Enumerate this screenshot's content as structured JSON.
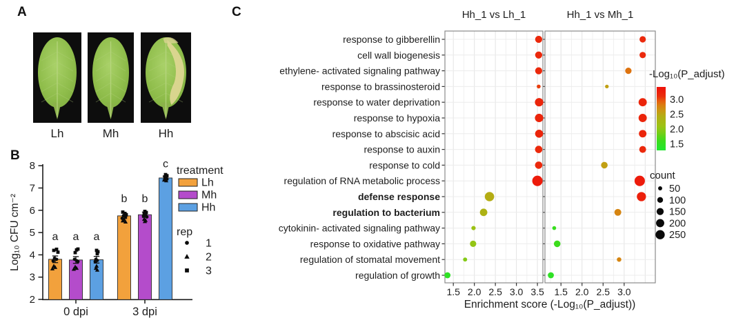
{
  "panels": {
    "a": {
      "label": "A"
    },
    "b": {
      "label": "B"
    },
    "c": {
      "label": "C"
    }
  },
  "panel_a": {
    "leaves": [
      {
        "label": "Lh",
        "damaged": false
      },
      {
        "label": "Mh",
        "damaged": false
      },
      {
        "label": "Hh",
        "damaged": true
      }
    ]
  },
  "chart_data": [
    {
      "type": "bar",
      "panel": "B",
      "ylabel": "Log₁₀ CFU cm⁻²",
      "ylim": [
        2,
        8
      ],
      "yticks": [
        2,
        3,
        4,
        5,
        6,
        7,
        8
      ],
      "groups": [
        "0 dpi",
        "3 dpi"
      ],
      "legend_title": "treatment",
      "series": [
        {
          "name": "Lh",
          "color": "#F2A13C",
          "values": [
            3.8,
            5.75
          ],
          "errors": [
            0.15,
            0.12
          ],
          "letters": [
            "a",
            "b"
          ],
          "letter_v": [
            4.66,
            6.36
          ],
          "jitter": [
            [
              [
                -2,
                4.2,
                "s"
              ],
              [
                2,
                4.25,
                "s"
              ],
              [
                4,
                4.12,
                "s"
              ],
              [
                -1,
                3.85,
                "c"
              ],
              [
                2,
                3.8,
                "c"
              ],
              [
                -3,
                3.73,
                "c"
              ],
              [
                -2,
                3.5,
                "t"
              ],
              [
                0,
                3.44,
                "t"
              ],
              [
                -4,
                3.38,
                "t"
              ]
            ],
            [
              [
                -2,
                5.92,
                "s"
              ],
              [
                1,
                5.86,
                "s"
              ],
              [
                3,
                5.8,
                "s"
              ],
              [
                -1,
                5.76,
                "c"
              ],
              [
                2,
                5.7,
                "c"
              ],
              [
                -3,
                5.64,
                "c"
              ],
              [
                0,
                5.58,
                "t"
              ],
              [
                -2,
                5.53,
                "t"
              ],
              [
                2,
                5.48,
                "t"
              ]
            ]
          ]
        },
        {
          "name": "Mh",
          "color": "#B44CCB",
          "values": [
            3.77,
            5.8
          ],
          "errors": [
            0.15,
            0.12
          ],
          "letters": [
            "a",
            "b"
          ],
          "letter_v": [
            4.66,
            6.36
          ],
          "jitter": [
            [
              [
                1,
                4.22,
                "s"
              ],
              [
                3,
                4.26,
                "s"
              ],
              [
                -1,
                4.1,
                "s"
              ],
              [
                -2,
                3.8,
                "c"
              ],
              [
                1,
                3.74,
                "c"
              ],
              [
                3,
                3.7,
                "c"
              ],
              [
                -1,
                3.46,
                "t"
              ],
              [
                1,
                3.4,
                "t"
              ],
              [
                -3,
                3.36,
                "t"
              ]
            ],
            [
              [
                0,
                5.95,
                "s"
              ],
              [
                2,
                5.9,
                "s"
              ],
              [
                -1,
                5.84,
                "s"
              ],
              [
                1,
                5.79,
                "c"
              ],
              [
                -2,
                5.74,
                "c"
              ],
              [
                3,
                5.7,
                "c"
              ],
              [
                -1,
                5.6,
                "t"
              ],
              [
                1,
                5.55,
                "t"
              ],
              [
                0,
                5.5,
                "t"
              ]
            ]
          ]
        },
        {
          "name": "Hh",
          "color": "#5CA0E2",
          "values": [
            3.78,
            7.45
          ],
          "errors": [
            0.15,
            0.08
          ],
          "letters": [
            "a",
            "c"
          ],
          "letter_v": [
            4.66,
            7.93
          ],
          "jitter": [
            [
              [
                0,
                4.2,
                "s"
              ],
              [
                2,
                4.14,
                "s"
              ],
              [
                1,
                4.05,
                "s"
              ],
              [
                -1,
                3.8,
                "c"
              ],
              [
                1,
                3.75,
                "c"
              ],
              [
                -2,
                3.7,
                "c"
              ],
              [
                0,
                3.5,
                "t"
              ],
              [
                -1,
                3.4,
                "t"
              ],
              [
                1,
                3.32,
                "t"
              ]
            ],
            [
              [
                0,
                7.6,
                "s"
              ],
              [
                2,
                7.55,
                "s"
              ],
              [
                -1,
                7.5,
                "s"
              ],
              [
                1,
                7.5,
                "c"
              ],
              [
                -1,
                7.45,
                "c"
              ],
              [
                2,
                7.4,
                "c"
              ],
              [
                0,
                7.4,
                "t"
              ],
              [
                -2,
                7.36,
                "t"
              ],
              [
                1,
                7.33,
                "t"
              ]
            ]
          ]
        }
      ],
      "rep_legend": {
        "title": "rep",
        "items": [
          {
            "shape": "circle",
            "label": "1"
          },
          {
            "shape": "triangle",
            "label": "2"
          },
          {
            "shape": "square",
            "label": "3"
          }
        ]
      }
    },
    {
      "type": "scatter",
      "panel": "C",
      "xlabel": "Enrichment score (-Log₁₀(P_adjust))",
      "facets": [
        {
          "title": "Hh_1 vs Lh_1",
          "xlim": [
            1.3,
            3.63
          ],
          "xticks": [
            1.5,
            2.0,
            2.5,
            3.0,
            3.5
          ]
        },
        {
          "title": "Hh_1 vs Mh_1",
          "xlim": [
            1.12,
            3.74
          ],
          "xticks": [
            1.5,
            2.0,
            2.5,
            3.0
          ]
        }
      ],
      "terms": [
        {
          "label": "response to gibberellin",
          "bold": false
        },
        {
          "label": "cell wall biogenesis",
          "bold": false
        },
        {
          "label": "ethylene- activated signaling pathway",
          "bold": false
        },
        {
          "label": "response to brassinosteroid",
          "bold": false
        },
        {
          "label": "response to water deprivation",
          "bold": false
        },
        {
          "label": "response to hypoxia",
          "bold": false
        },
        {
          "label": "response to abscisic acid",
          "bold": false
        },
        {
          "label": "response to auxin",
          "bold": false
        },
        {
          "label": "response to cold",
          "bold": false
        },
        {
          "label": "regulation of RNA metabolic process",
          "bold": false
        },
        {
          "label": "defense response",
          "bold": true
        },
        {
          "label": "regulation to bacterium",
          "bold": true
        },
        {
          "label": "cytokinin- activated signaling pathway",
          "bold": false
        },
        {
          "label": "response to oxidative pathway",
          "bold": false
        },
        {
          "label": "regulation of stomatal movement",
          "bold": false
        },
        {
          "label": "regulation of growth",
          "bold": false
        }
      ],
      "points": [
        {
          "facet": 0,
          "term": 0,
          "x": 3.53,
          "count": 150,
          "padj": 3.15
        },
        {
          "facet": 0,
          "term": 1,
          "x": 3.53,
          "count": 150,
          "padj": 3.15
        },
        {
          "facet": 0,
          "term": 2,
          "x": 3.53,
          "count": 150,
          "padj": 3.15
        },
        {
          "facet": 0,
          "term": 3,
          "x": 3.53,
          "count": 45,
          "padj": 3.05
        },
        {
          "facet": 0,
          "term": 4,
          "x": 3.54,
          "count": 210,
          "padj": 3.2
        },
        {
          "facet": 0,
          "term": 5,
          "x": 3.54,
          "count": 210,
          "padj": 3.2
        },
        {
          "facet": 0,
          "term": 6,
          "x": 3.54,
          "count": 190,
          "padj": 3.2
        },
        {
          "facet": 0,
          "term": 7,
          "x": 3.53,
          "count": 160,
          "padj": 3.15
        },
        {
          "facet": 0,
          "term": 8,
          "x": 3.53,
          "count": 160,
          "padj": 3.15
        },
        {
          "facet": 0,
          "term": 9,
          "x": 3.5,
          "count": 320,
          "padj": 3.3
        },
        {
          "facet": 0,
          "term": 10,
          "x": 2.36,
          "count": 260,
          "padj": 2.45
        },
        {
          "facet": 0,
          "term": 11,
          "x": 2.22,
          "count": 165,
          "padj": 2.35
        },
        {
          "facet": 0,
          "term": 12,
          "x": 1.98,
          "count": 55,
          "padj": 2.1
        },
        {
          "facet": 0,
          "term": 13,
          "x": 1.97,
          "count": 120,
          "padj": 2.05
        },
        {
          "facet": 0,
          "term": 14,
          "x": 1.78,
          "count": 50,
          "padj": 1.95
        },
        {
          "facet": 0,
          "term": 15,
          "x": 1.36,
          "count": 110,
          "padj": 1.45
        },
        {
          "facet": 1,
          "term": 0,
          "x": 3.44,
          "count": 120,
          "padj": 3.15
        },
        {
          "facet": 1,
          "term": 1,
          "x": 3.44,
          "count": 120,
          "padj": 3.15
        },
        {
          "facet": 1,
          "term": 2,
          "x": 3.1,
          "count": 120,
          "padj": 2.85
        },
        {
          "facet": 1,
          "term": 3,
          "x": 2.59,
          "count": 40,
          "padj": 2.55
        },
        {
          "facet": 1,
          "term": 4,
          "x": 3.44,
          "count": 200,
          "padj": 3.2
        },
        {
          "facet": 1,
          "term": 5,
          "x": 3.44,
          "count": 200,
          "padj": 3.2
        },
        {
          "facet": 1,
          "term": 6,
          "x": 3.44,
          "count": 170,
          "padj": 3.2
        },
        {
          "facet": 1,
          "term": 7,
          "x": 3.44,
          "count": 140,
          "padj": 3.15
        },
        {
          "facet": 1,
          "term": 8,
          "x": 2.53,
          "count": 130,
          "padj": 2.55
        },
        {
          "facet": 1,
          "term": 9,
          "x": 3.37,
          "count": 320,
          "padj": 3.3
        },
        {
          "facet": 1,
          "term": 10,
          "x": 3.41,
          "count": 250,
          "padj": 3.25
        },
        {
          "facet": 1,
          "term": 11,
          "x": 2.85,
          "count": 140,
          "padj": 2.75
        },
        {
          "facet": 1,
          "term": 12,
          "x": 1.34,
          "count": 45,
          "padj": 1.55
        },
        {
          "facet": 1,
          "term": 13,
          "x": 1.41,
          "count": 130,
          "padj": 1.6
        },
        {
          "facet": 1,
          "term": 14,
          "x": 2.88,
          "count": 60,
          "padj": 2.75
        },
        {
          "facet": 1,
          "term": 15,
          "x": 1.26,
          "count": 110,
          "padj": 1.45
        }
      ],
      "color_legend": {
        "title": "-Log₁₀(P_adjust)",
        "tick_values": [
          3.0,
          2.5,
          2.0,
          1.5
        ],
        "range": [
          1.28,
          3.42
        ],
        "stops": [
          [
            1.3,
            "#22e62e"
          ],
          [
            1.6,
            "#3cdc1c"
          ],
          [
            1.9,
            "#7ccc16"
          ],
          [
            2.1,
            "#9cc214"
          ],
          [
            2.45,
            "#b4ac14"
          ],
          [
            2.6,
            "#c89a12"
          ],
          [
            2.8,
            "#da7e10"
          ],
          [
            2.95,
            "#e65c0e"
          ],
          [
            3.1,
            "#ea2e0c"
          ],
          [
            3.4,
            "#ee120a"
          ]
        ]
      },
      "size_legend": {
        "title": "count",
        "items": [
          50,
          100,
          150,
          200,
          250
        ]
      }
    }
  ]
}
